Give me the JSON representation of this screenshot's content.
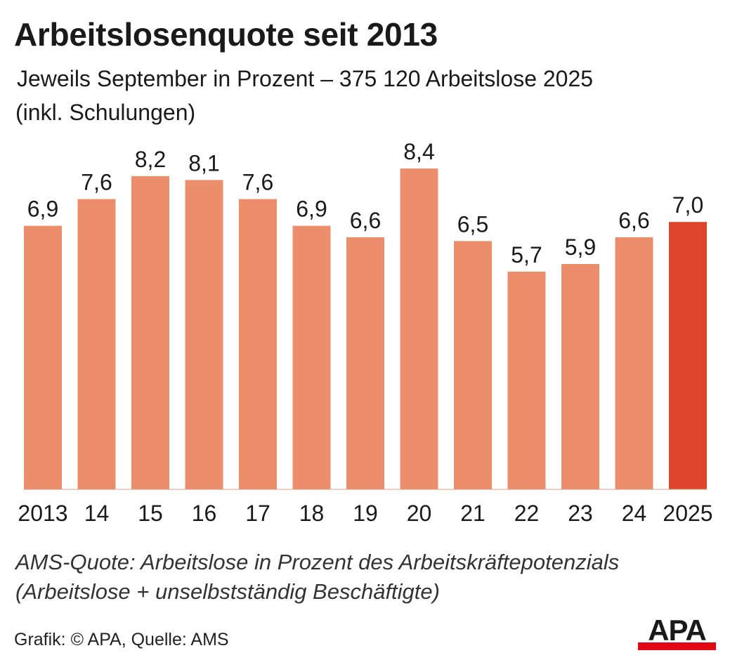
{
  "header": {
    "title": "Arbeitslosenquote seit 2013",
    "subtitle_line1": "Jeweils September in Prozent – 375 120 Arbeitslose 2025",
    "subtitle_line2": "(inkl. Schulungen)"
  },
  "chart_data": {
    "type": "bar",
    "categories": [
      "2013",
      "14",
      "15",
      "16",
      "17",
      "18",
      "19",
      "20",
      "21",
      "22",
      "23",
      "24",
      "2025"
    ],
    "values": [
      6.9,
      7.6,
      8.2,
      8.1,
      7.6,
      6.9,
      6.6,
      8.4,
      6.5,
      5.7,
      5.9,
      6.6,
      7.0
    ],
    "value_labels": [
      "6,9",
      "7,6",
      "8,2",
      "8,1",
      "7,6",
      "6,9",
      "6,6",
      "8,4",
      "6,5",
      "5,7",
      "5,9",
      "6,6",
      "7,0"
    ],
    "highlight_index": 12,
    "ylim": [
      0,
      8.4
    ],
    "grid": false,
    "colors": {
      "bar": "#EC8E6C",
      "highlight": "#DC452B"
    }
  },
  "footer": {
    "note_line1": "AMS-Quote: Arbeitslose in Prozent des Arbeitskräftepotenzials",
    "note_line2": "(Arbeitslose + unselbstständig Beschäftigte)",
    "source": "Grafik: © APA, Quelle: AMS",
    "logo_text": "APA",
    "logo_color": "#E30613"
  }
}
